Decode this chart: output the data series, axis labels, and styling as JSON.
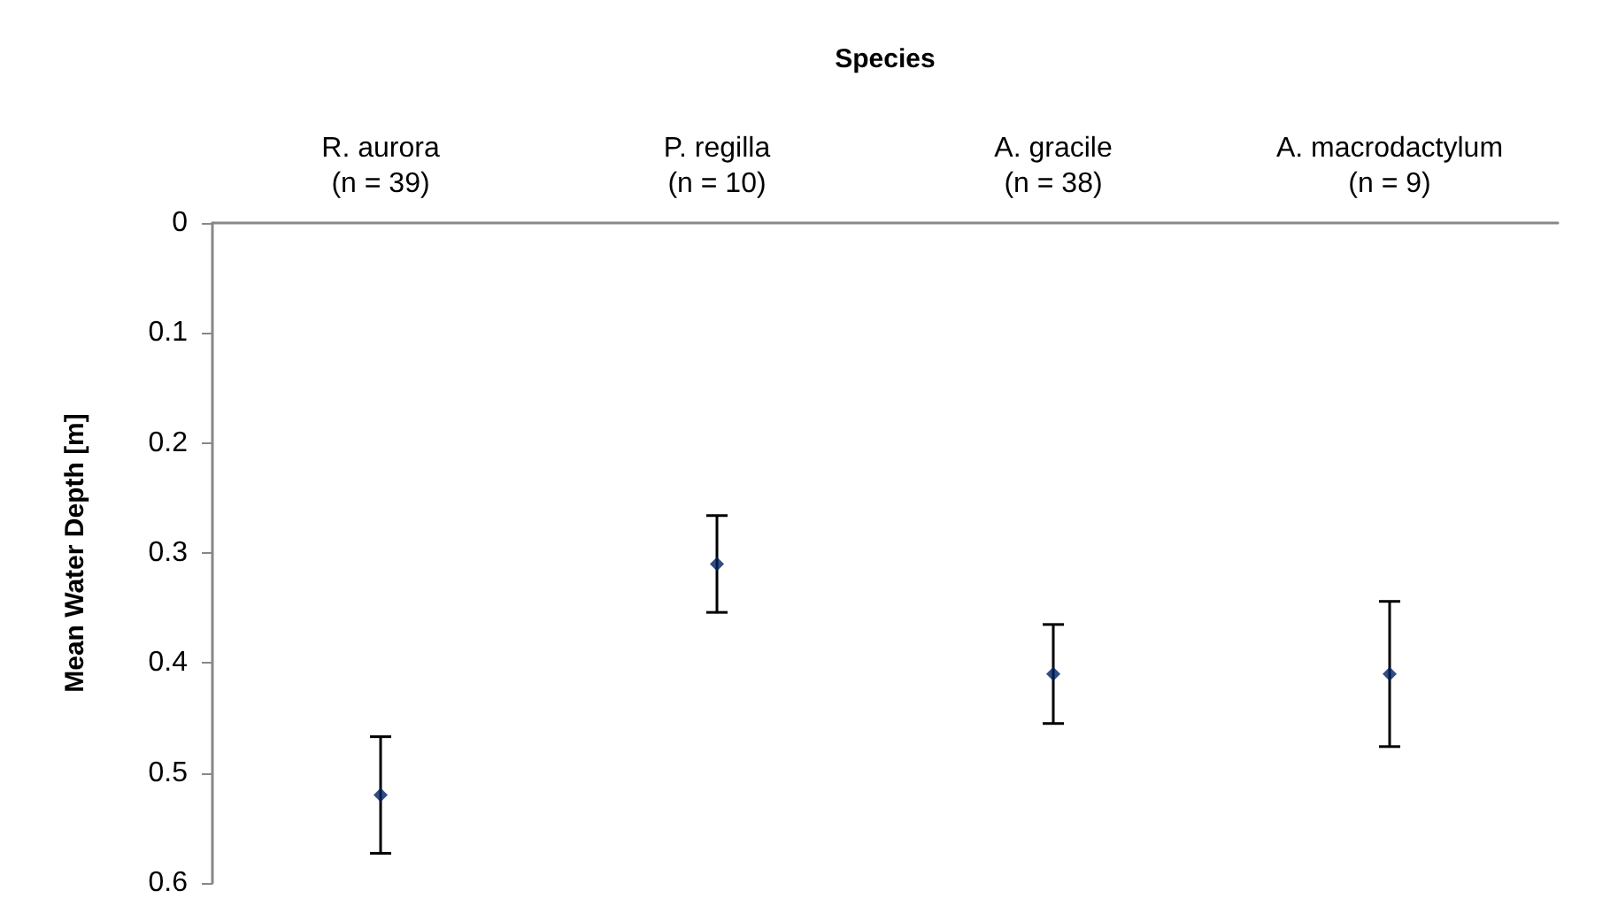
{
  "chart_data": {
    "type": "scatter",
    "xlabel": "Species",
    "ylabel": "Mean Water Depth [m]",
    "categories": [
      "R. aurora\n(n = 39)",
      "P. regilla\n(n = 10)",
      "A. gracile\n(n = 38)",
      "A. macrodactylum\n(n = 9)"
    ],
    "values": [
      0.52,
      0.31,
      0.41,
      0.41
    ],
    "errors": [
      0.053,
      0.044,
      0.045,
      0.066
    ],
    "color": "#002060",
    "marker": "diamond",
    "ylim": [
      0.6,
      0
    ],
    "yticks": [
      0,
      0.1,
      0.2,
      0.3,
      0.4,
      0.5,
      0.6
    ],
    "grid": false
  }
}
